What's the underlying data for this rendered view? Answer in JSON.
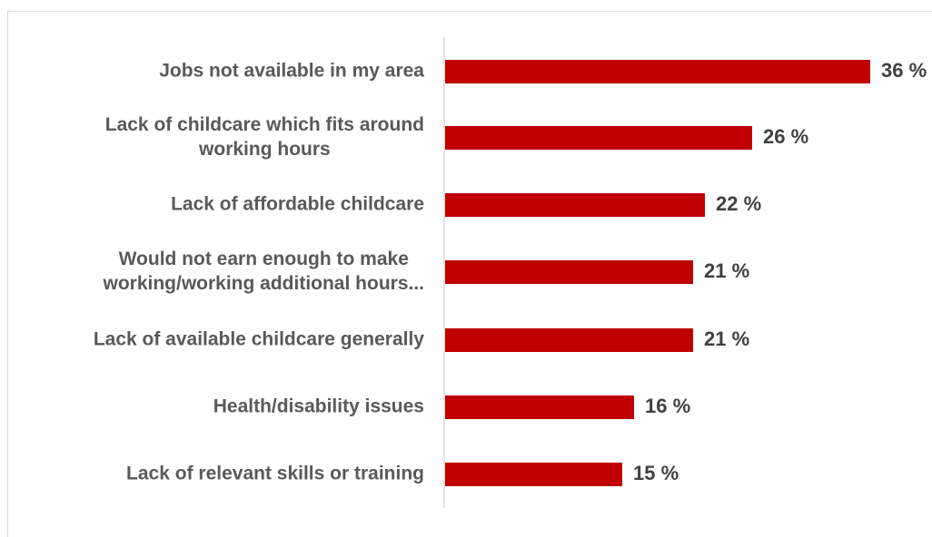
{
  "chart_data": {
    "type": "bar",
    "orientation": "horizontal",
    "categories": [
      [
        "Jobs not available in my area"
      ],
      [
        "Lack of childcare which fits around",
        "working hours"
      ],
      [
        "Lack of affordable childcare"
      ],
      [
        "Would not earn enough to make",
        "working/working additional hours..."
      ],
      [
        "Lack of available childcare generally"
      ],
      [
        "Health/disability issues"
      ],
      [
        "Lack of relevant skills or training"
      ]
    ],
    "values": [
      36,
      26,
      22,
      21,
      21,
      16,
      15
    ],
    "value_labels": [
      "36 %",
      "26 %",
      "22 %",
      "21 %",
      "21 %",
      "16 %",
      "15 %"
    ],
    "title": "",
    "xlabel": "",
    "ylabel": "",
    "xlim": [
      0,
      36
    ],
    "grid": false,
    "legend": "none",
    "colors": {
      "bar": "#c00000",
      "category_text": "#595959",
      "value_text": "#404040",
      "axis": "#d9d9d9"
    }
  }
}
